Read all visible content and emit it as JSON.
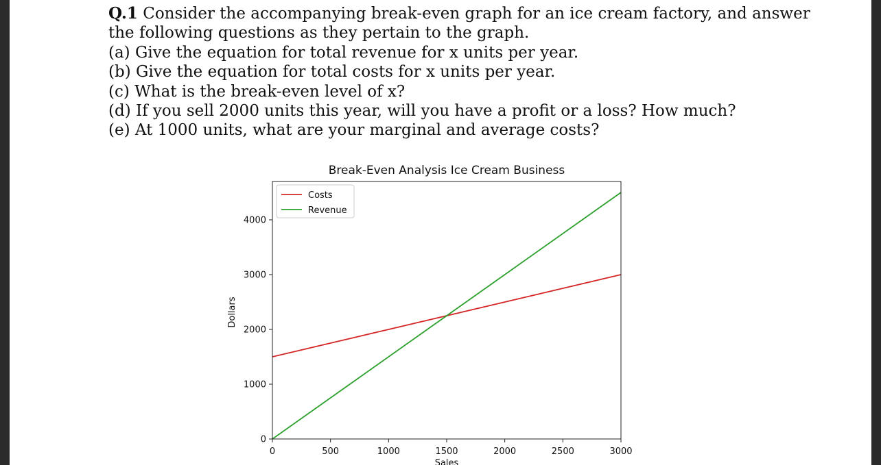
{
  "question": {
    "number": "Q.1",
    "intro_line1": "Consider the accompanying break-even graph for an ice cream factory, and answer",
    "intro_line2": "the following questions as they pertain to the graph.",
    "parts": [
      "(a) Give the equation for total revenue for x units per year.",
      "(b) Give the equation for total costs for x units per year.",
      "(c) What is the break-even level of x?",
      "(d) If you sell 2000 units this year, will you have a profit or a loss? How much?",
      "(e) At 1000 units, what are your marginal and average costs?"
    ]
  },
  "chart_data": {
    "type": "line",
    "title": "Break-Even Analysis Ice Cream Business",
    "xlabel": "Sales",
    "ylabel": "Dollars",
    "xlim": [
      0,
      3000
    ],
    "ylim": [
      0,
      4700
    ],
    "xticks": [
      0,
      500,
      1000,
      1500,
      2000,
      2500,
      3000
    ],
    "yticks": [
      0,
      1000,
      2000,
      3000,
      4000
    ],
    "grid": false,
    "legend_position": "top-left",
    "series": [
      {
        "name": "Costs",
        "color": "#d62728",
        "x": [
          0,
          3000
        ],
        "y": [
          1500,
          3000
        ]
      },
      {
        "name": "Revenue",
        "color": "#2ca02c",
        "x": [
          0,
          3000
        ],
        "y": [
          0,
          4500
        ]
      }
    ]
  }
}
